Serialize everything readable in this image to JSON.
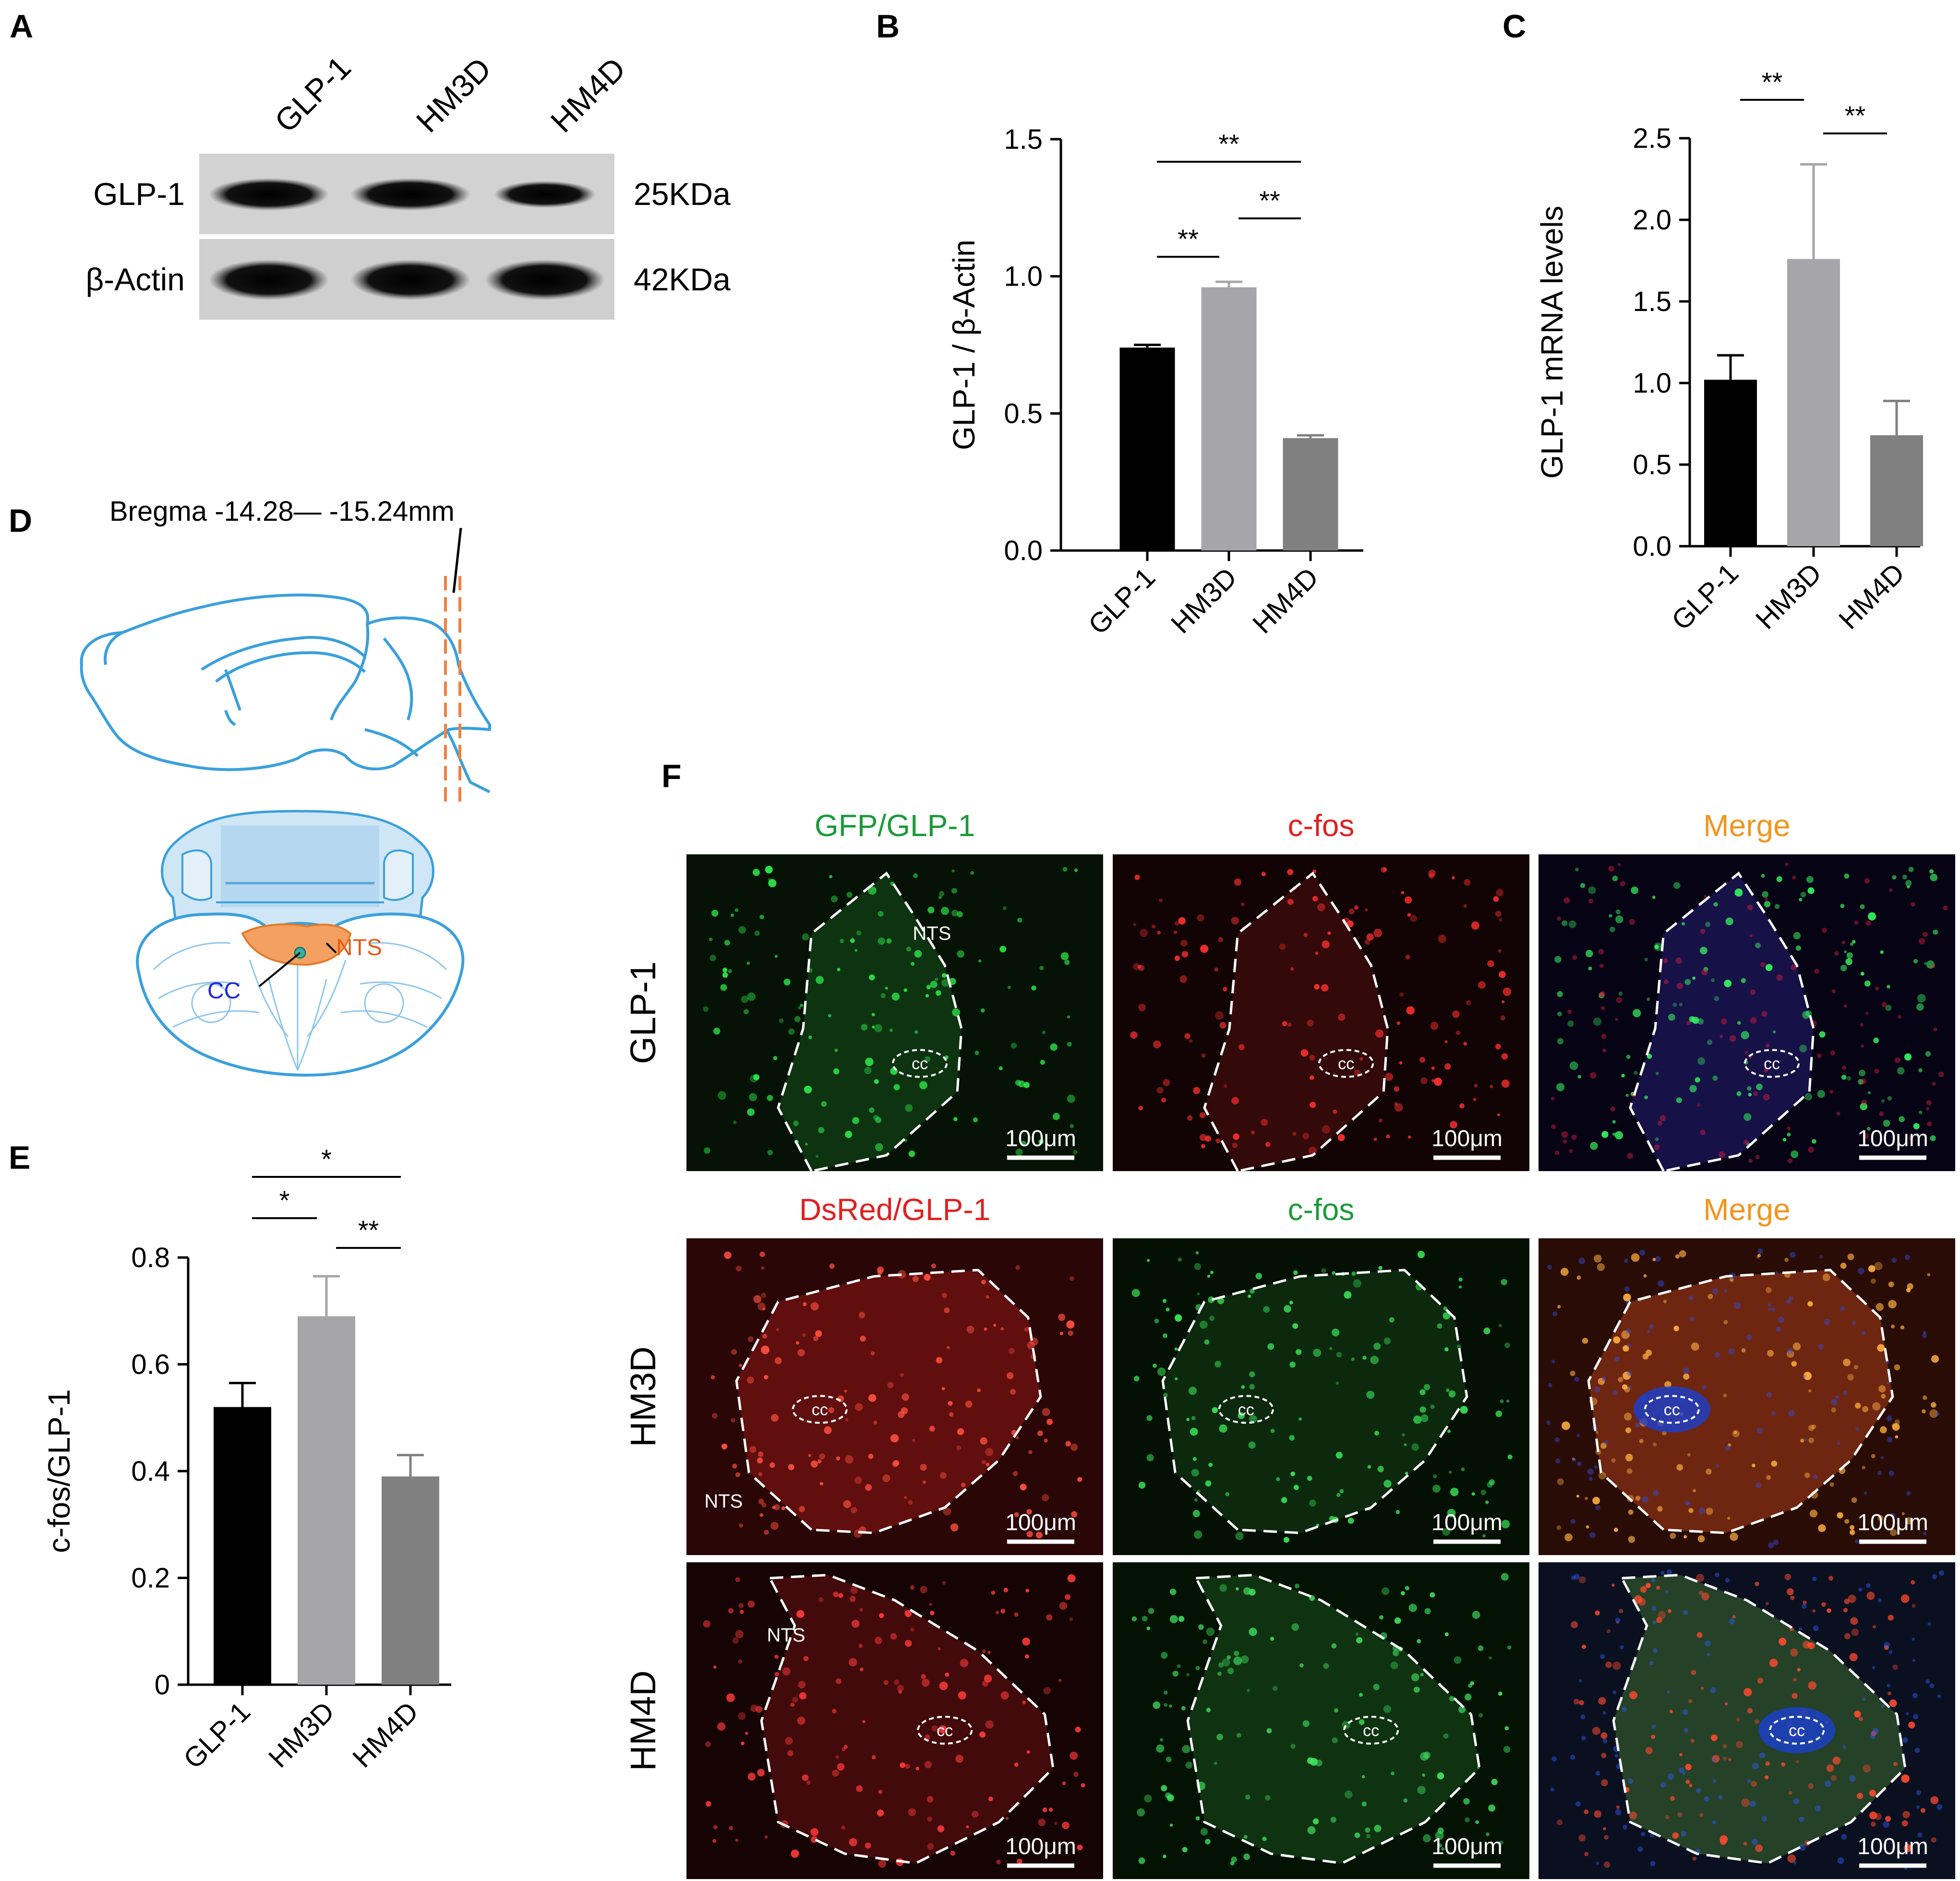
{
  "panels": {
    "A": {
      "letter": "A",
      "lanes": [
        "GLP-1",
        "HM3D",
        "HM4D"
      ],
      "rows": [
        {
          "name": "GLP-1",
          "kda": "25KDa",
          "intensity": [
            1.0,
            1.0,
            0.62
          ]
        },
        {
          "name": "β-Actin",
          "kda": "42KDa",
          "intensity": [
            1.0,
            1.0,
            1.0
          ]
        }
      ]
    },
    "B": {
      "letter": "B",
      "chart_data": {
        "type": "bar",
        "categories": [
          "GLP-1",
          "HM3D",
          "HM4D"
        ],
        "values": [
          0.74,
          0.96,
          0.41
        ],
        "errors": [
          0.01,
          0.02,
          0.01
        ],
        "colors": [
          "#000000",
          "#a6a6aa",
          "#808080"
        ],
        "ylabel": "GLP-1 / β-Actin",
        "ylim": [
          0,
          1.5
        ],
        "yticks": [
          "0.0",
          "0.5",
          "1.0",
          "1.5"
        ],
        "tick_values": [
          0,
          0.5,
          1.0,
          1.5
        ],
        "significance": [
          {
            "from": 0,
            "to": 1,
            "label": "**"
          },
          {
            "from": 1,
            "to": 2,
            "label": "**"
          },
          {
            "from": 0,
            "to": 2,
            "label": "**"
          }
        ]
      }
    },
    "C": {
      "letter": "C",
      "chart_data": {
        "type": "bar",
        "categories": [
          "GLP-1",
          "HM3D",
          "HM4D"
        ],
        "values": [
          1.02,
          1.76,
          0.68
        ],
        "errors": [
          0.15,
          0.58,
          0.21
        ],
        "colors": [
          "#000000",
          "#a6a6aa",
          "#808080"
        ],
        "ylabel": "GLP-1 mRNA levels",
        "ylim": [
          0,
          2.5
        ],
        "yticks": [
          "0.0",
          "0.5",
          "1.0",
          "1.5",
          "2.0",
          "2.5"
        ],
        "tick_values": [
          0,
          0.5,
          1.0,
          1.5,
          2.0,
          2.5
        ],
        "significance": [
          {
            "from": 0,
            "to": 1,
            "label": "**"
          },
          {
            "from": 1,
            "to": 2,
            "label": "**"
          }
        ]
      }
    },
    "D": {
      "letter": "D",
      "bregma": "Bregma -14.28— -15.24mm",
      "nts": "NTS",
      "cc": "CC"
    },
    "E": {
      "letter": "E",
      "chart_data": {
        "type": "bar",
        "categories": [
          "GLP-1",
          "HM3D",
          "HM4D"
        ],
        "values": [
          0.52,
          0.69,
          0.39
        ],
        "errors": [
          0.045,
          0.075,
          0.04
        ],
        "colors": [
          "#000000",
          "#a6a6aa",
          "#808080"
        ],
        "ylabel": "c-fos/GLP-1",
        "ylim": [
          0,
          0.8
        ],
        "yticks": [
          "0",
          "0.2",
          "0.4",
          "0.6",
          "0.8"
        ],
        "tick_values": [
          0,
          0.2,
          0.4,
          0.6,
          0.8
        ],
        "significance": [
          {
            "from": 0,
            "to": 1,
            "label": "*"
          },
          {
            "from": 1,
            "to": 2,
            "label": "**"
          },
          {
            "from": 0,
            "to": 2,
            "label": "*"
          }
        ]
      }
    },
    "F": {
      "letter": "F",
      "scale_bar": "100μm",
      "cc_label": "cc",
      "nts_label": "NTS",
      "rows": [
        {
          "label": "GLP-1",
          "headers": [
            "GFP/GLP-1",
            "c-fos",
            "Merge"
          ],
          "header_colors": [
            "#1a9a3a",
            "#e02020",
            "#f0961e"
          ]
        },
        {
          "label": "HM3D",
          "headers": [
            "DsRed/GLP-1",
            "c-fos",
            "Merge"
          ],
          "header_colors": [
            "#e02020",
            "#1a9a3a",
            "#f0961e"
          ]
        },
        {
          "label": "HM4D",
          "headers": [],
          "header_colors": []
        }
      ]
    }
  }
}
